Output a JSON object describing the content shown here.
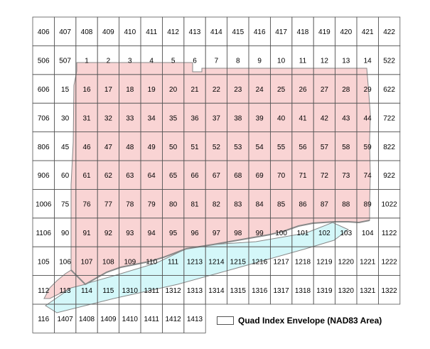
{
  "colors": {
    "land": "#f9d4d4",
    "water": "#d4f7f9",
    "grid_line": "#555555",
    "coast_line": "#888888",
    "background": "#ffffff"
  },
  "legend": {
    "label": "Quad Index Envelope (NAD83 Area)",
    "icon": "legend-swatch-icon"
  },
  "grid": {
    "rows": [
      [
        "406",
        "407",
        "408",
        "409",
        "410",
        "411",
        "412",
        "413",
        "414",
        "415",
        "416",
        "417",
        "418",
        "419",
        "420",
        "421",
        "422"
      ],
      [
        "506",
        "507",
        "1",
        "2",
        "3",
        "4",
        "5",
        "6",
        "7",
        "8",
        "9",
        "10",
        "11",
        "12",
        "13",
        "14",
        "522"
      ],
      [
        "606",
        "15",
        "16",
        "17",
        "18",
        "19",
        "20",
        "21",
        "22",
        "23",
        "24",
        "25",
        "26",
        "27",
        "28",
        "29",
        "622"
      ],
      [
        "706",
        "30",
        "31",
        "32",
        "33",
        "34",
        "35",
        "36",
        "37",
        "38",
        "39",
        "40",
        "41",
        "42",
        "43",
        "44",
        "722"
      ],
      [
        "806",
        "45",
        "46",
        "47",
        "48",
        "49",
        "50",
        "51",
        "52",
        "53",
        "54",
        "55",
        "56",
        "57",
        "58",
        "59",
        "822"
      ],
      [
        "906",
        "60",
        "61",
        "62",
        "63",
        "64",
        "65",
        "66",
        "67",
        "68",
        "69",
        "70",
        "71",
        "72",
        "73",
        "74",
        "922"
      ],
      [
        "1006",
        "75",
        "76",
        "77",
        "78",
        "79",
        "80",
        "81",
        "82",
        "83",
        "84",
        "85",
        "86",
        "87",
        "88",
        "89",
        "1022"
      ],
      [
        "1106",
        "90",
        "91",
        "92",
        "93",
        "94",
        "95",
        "96",
        "97",
        "98",
        "99",
        "100",
        "101",
        "102",
        "103",
        "104",
        "1122"
      ],
      [
        "105",
        "106",
        "107",
        "108",
        "109",
        "110",
        "111",
        "1213",
        "1214",
        "1215",
        "1216",
        "1217",
        "1218",
        "1219",
        "1220",
        "1221",
        "1222"
      ],
      [
        "112",
        "113",
        "114",
        "115",
        "1310",
        "1311",
        "1312",
        "1313",
        "1314",
        "1315",
        "1316",
        "1317",
        "1318",
        "1319",
        "1320",
        "1321",
        "1322"
      ],
      [
        "116",
        "1407",
        "1408",
        "1409",
        "1410",
        "1411",
        "1412",
        "1413"
      ]
    ]
  }
}
